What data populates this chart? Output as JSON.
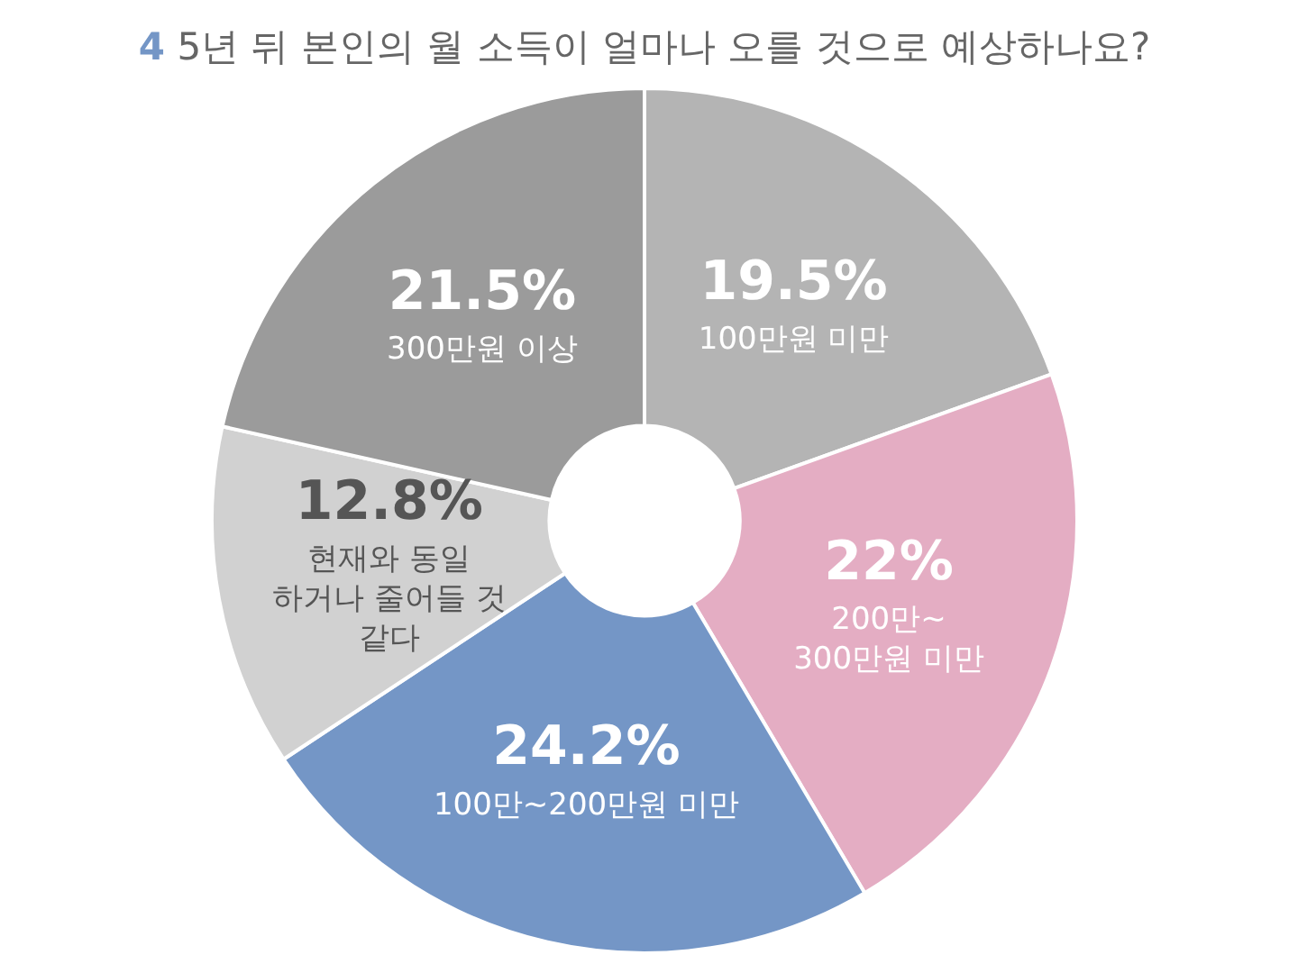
{
  "chart_data": {
    "type": "donut",
    "title": "4 5년 뒤 본인의 월 소득이 얼마나 오를 것으로 예상하나요?",
    "categories": [
      "100만원 미만",
      "200만~ 300만원 미만",
      "100만~200만원 미만",
      "현재와 동일 하거나 줄어들 것 같다",
      "300만원 이상"
    ],
    "values": [
      19.5,
      22,
      24.2,
      12.8,
      21.5
    ],
    "colors": [
      "#b4b4b4",
      "#e4adc3",
      "#7496c6",
      "#d1d1d1",
      "#9b9b9b"
    ],
    "value_labels": [
      "19.5%",
      "22%",
      "24.2%",
      "12.8%",
      "21.5%"
    ]
  }
}
